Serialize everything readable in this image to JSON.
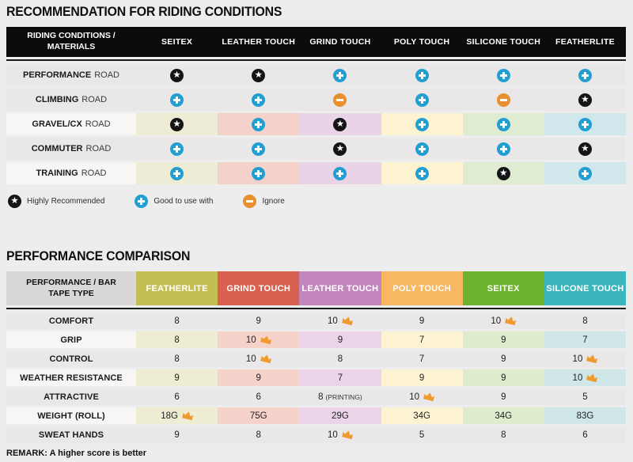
{
  "page_bg": "#ededed",
  "icon_colors": {
    "star_bg": "#141414",
    "plus_bg": "#219fd3",
    "minus_bg": "#e88f2f",
    "crown": "#f0992e"
  },
  "chart_data": [
    {
      "type": "table",
      "title": "RECOMMENDATION FOR RIDING CONDITIONS",
      "corner_header": "RIDING CONDITIONS / MATERIALS",
      "columns": [
        "SEITEX",
        "LEATHER TOUCH",
        "GRIND TOUCH",
        "POLY TOUCH",
        "SILICONE TOUCH",
        "FEATHERLITE"
      ],
      "column_tints": [
        "#eeecd5",
        "#f4d1cb",
        "#e9d3e6",
        "#fdf3d0",
        "#dfecd2",
        "#d0e7ec"
      ],
      "rows": [
        {
          "label_bold": "PERFORMANCE",
          "label_rest": "ROAD",
          "tinted": false,
          "cells": [
            "star",
            "star",
            "plus",
            "plus",
            "plus",
            "plus"
          ]
        },
        {
          "label_bold": "CLIMBING",
          "label_rest": "ROAD",
          "tinted": false,
          "cells": [
            "plus",
            "plus",
            "minus",
            "plus",
            "minus",
            "star"
          ]
        },
        {
          "label_bold": "GRAVEL/CX",
          "label_rest": "ROAD",
          "tinted": true,
          "cells": [
            "star",
            "plus",
            "star",
            "plus",
            "plus",
            "plus"
          ]
        },
        {
          "label_bold": "COMMUTER",
          "label_rest": "ROAD",
          "tinted": false,
          "cells": [
            "plus",
            "plus",
            "star",
            "plus",
            "plus",
            "star"
          ]
        },
        {
          "label_bold": "TRAINING",
          "label_rest": "ROAD",
          "tinted": true,
          "cells": [
            "plus",
            "plus",
            "plus",
            "plus",
            "star",
            "plus"
          ]
        }
      ],
      "legend": [
        {
          "icon": "star",
          "label": "Highly Recommended"
        },
        {
          "icon": "plus",
          "label": "Good to use with"
        },
        {
          "icon": "minus",
          "label": "Ignore"
        }
      ]
    },
    {
      "type": "table",
      "title": "PERFORMANCE COMPARISON",
      "corner_header": "PERFORMANCE / BAR TAPE TYPE",
      "columns": [
        {
          "label": "FEATHERLITE",
          "color": "#c5bf53",
          "tint": "#eeecd2"
        },
        {
          "label": "GRIND TOUCH",
          "color": "#d9614f",
          "tint": "#f5d2ca"
        },
        {
          "label": "LEATHER TOUCH",
          "color": "#c286bd",
          "tint": "#ecd4e8"
        },
        {
          "label": "POLY TOUCH",
          "color": "#f7b763",
          "tint": "#fdf3d2"
        },
        {
          "label": "SEITEX",
          "color": "#6cb32f",
          "tint": "#ddeccd"
        },
        {
          "label": "SILICONE TOUCH",
          "color": "#3cb5bd",
          "tint": "#cfe7e9"
        }
      ],
      "rows": [
        {
          "label": "COMFORT",
          "tinted": false,
          "cells": [
            {
              "v": "8"
            },
            {
              "v": "9"
            },
            {
              "v": "10",
              "crown": true
            },
            {
              "v": "9"
            },
            {
              "v": "10",
              "crown": true
            },
            {
              "v": "8"
            }
          ]
        },
        {
          "label": "GRIP",
          "tinted": true,
          "cells": [
            {
              "v": "8"
            },
            {
              "v": "10",
              "crown": true
            },
            {
              "v": "9"
            },
            {
              "v": "7"
            },
            {
              "v": "9"
            },
            {
              "v": "7"
            }
          ]
        },
        {
          "label": "CONTROL",
          "tinted": false,
          "cells": [
            {
              "v": "8"
            },
            {
              "v": "10",
              "crown": true
            },
            {
              "v": "8"
            },
            {
              "v": "7"
            },
            {
              "v": "9"
            },
            {
              "v": "10",
              "crown": true
            }
          ]
        },
        {
          "label": "WEATHER RESISTANCE",
          "tinted": true,
          "cells": [
            {
              "v": "9"
            },
            {
              "v": "9"
            },
            {
              "v": "7"
            },
            {
              "v": "9"
            },
            {
              "v": "9"
            },
            {
              "v": "10",
              "crown": true
            }
          ]
        },
        {
          "label": "ATTRACTIVE",
          "tinted": false,
          "cells": [
            {
              "v": "6"
            },
            {
              "v": "6"
            },
            {
              "v": "8",
              "note": "(PRINTING)"
            },
            {
              "v": "10",
              "crown": true
            },
            {
              "v": "9"
            },
            {
              "v": "5"
            }
          ]
        },
        {
          "label": "WEIGHT (ROLL)",
          "tinted": true,
          "cells": [
            {
              "v": "18G",
              "crown": true
            },
            {
              "v": "75G"
            },
            {
              "v": "29G"
            },
            {
              "v": "34G"
            },
            {
              "v": "34G"
            },
            {
              "v": "83G"
            }
          ]
        },
        {
          "label": "SWEAT HANDS",
          "tinted": false,
          "cells": [
            {
              "v": "9"
            },
            {
              "v": "8"
            },
            {
              "v": "10",
              "crown": true
            },
            {
              "v": "5"
            },
            {
              "v": "8"
            },
            {
              "v": "6"
            }
          ]
        }
      ],
      "remark": "REMARK: A higher score is better"
    }
  ]
}
